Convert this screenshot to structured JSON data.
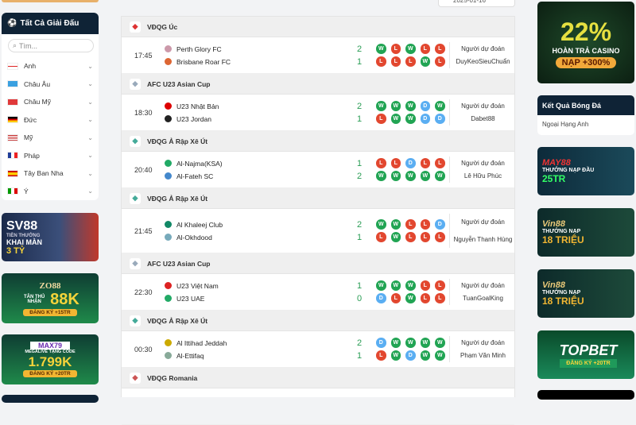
{
  "sidebar": {
    "title": "Tất Cả Giải Đấu",
    "search_placeholder": "Tìm...",
    "items": [
      {
        "label": "Anh",
        "flag": "england"
      },
      {
        "label": "Châu Âu",
        "flag": "europe"
      },
      {
        "label": "Châu Mỹ",
        "flag": "americas"
      },
      {
        "label": "Đức",
        "flag": "germany"
      },
      {
        "label": "Mỹ",
        "flag": "usa"
      },
      {
        "label": "Pháp",
        "flag": "france"
      },
      {
        "label": "Tây Ban Nha",
        "flag": "spain"
      },
      {
        "label": "Ý",
        "flag": "italy"
      }
    ]
  },
  "left_banners": [
    {
      "brand": "SV88",
      "line1": "TIỀN THƯỞNG",
      "line2": "KHAI MÀN",
      "big": "3 TỶ"
    },
    {
      "brand": "ZO88",
      "line1": "TÂN THỦ NHẬN",
      "big": "88K",
      "cta": "ĐĂNG KÝ +15TR"
    },
    {
      "brand": "MAX79",
      "line1": "MEGALIVE TẶNG CODE",
      "big": "1.799K",
      "cta": "ĐĂNG KÝ +20TR"
    }
  ],
  "date_label": "2025-01-16",
  "prediction_label": "Người dự đoán",
  "groups": [
    {
      "league": "VĐQG Úc",
      "time": "17:45",
      "home": "Perth Glory FC",
      "away": "Brisbane Roar FC",
      "hs": "2",
      "as": "1",
      "hf": [
        "W",
        "L",
        "W",
        "L",
        "L"
      ],
      "af": [
        "L",
        "L",
        "L",
        "W",
        "L"
      ],
      "predictor": "DuyKeoSieuChuẩn"
    },
    {
      "league": "AFC U23 Asian Cup",
      "time": "18:30",
      "home": "U23 Nhật Bản",
      "away": "U23 Jordan",
      "hs": "2",
      "as": "1",
      "hf": [
        "W",
        "W",
        "W",
        "D",
        "W"
      ],
      "af": [
        "L",
        "W",
        "W",
        "D",
        "D"
      ],
      "predictor": "Dabet88"
    },
    {
      "league": "VĐQG Ả Rập Xê Út",
      "time": "20:40",
      "home": "Al-Najma(KSA)",
      "away": "Al-Fateh SC",
      "hs": "1",
      "as": "2",
      "hf": [
        "L",
        "L",
        "D",
        "L",
        "L"
      ],
      "af": [
        "W",
        "W",
        "W",
        "W",
        "W"
      ],
      "predictor": "Lê Hữu Phúc"
    },
    {
      "league": "VĐQG Ả Rập Xê Út",
      "time": "21:45",
      "home": "Al Khaleej Club",
      "away": "Al-Okhdood",
      "hs": "2",
      "as": "1",
      "hf": [
        "W",
        "W",
        "L",
        "L",
        "D"
      ],
      "af": [
        "L",
        "W",
        "L",
        "L",
        "L"
      ],
      "predictor": "Nguyễn Thanh Hùng"
    },
    {
      "league": "AFC U23 Asian Cup",
      "time": "22:30",
      "home": "U23 Việt Nam",
      "away": "U23 UAE",
      "hs": "1",
      "as": "0",
      "hf": [
        "W",
        "W",
        "W",
        "L",
        "L"
      ],
      "af": [
        "D",
        "L",
        "W",
        "L",
        "L"
      ],
      "predictor": "TuanGoalKing"
    },
    {
      "league": "VĐQG Ả Rập Xê Út",
      "time": "00:30",
      "home": "Al Ittihad Jeddah",
      "away": "Al-Ettifaq",
      "hs": "2",
      "as": "1",
      "hf": [
        "D",
        "W",
        "W",
        "W",
        "W"
      ],
      "af": [
        "L",
        "W",
        "D",
        "W",
        "W"
      ],
      "predictor": "Phạm Văn Minh"
    },
    {
      "league": "VĐQG Romania"
    }
  ],
  "right": {
    "promo": {
      "big": "22%",
      "line": "HOÀN TRẢ CASINO",
      "cta": "NẠP +300%"
    },
    "results_title": "Kết Quả Bóng Đá",
    "results_item": "Ngoại Hạng Anh",
    "banners": [
      {
        "brand": "MAY88",
        "line1": "THƯỞNG NẠP ĐẦU",
        "big": "25TR"
      },
      {
        "brand": "Vin88",
        "line1": "THƯỞNG NẠP",
        "big": "18 TRIỆU"
      },
      {
        "brand": "Vin88",
        "line1": "THƯỞNG NẠP",
        "big": "18 TRIỆU"
      },
      {
        "brand": "TOPBET",
        "line1": "ĐĂNG KÝ +20TR"
      }
    ]
  },
  "colors": {
    "win": "#21a453",
    "loss": "#e2472f",
    "draw": "#5aaef2",
    "header": "#0f2336",
    "score": "#2a9d55"
  }
}
